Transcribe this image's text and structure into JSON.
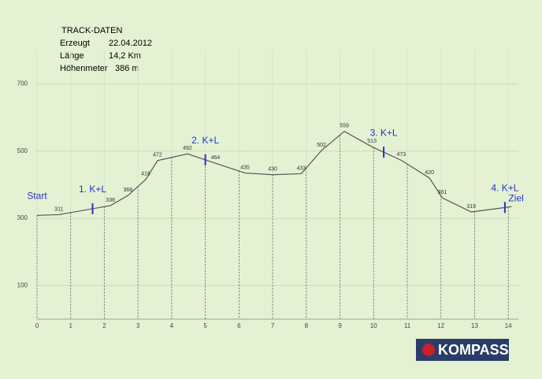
{
  "info": {
    "title": "TRACK-DATEN",
    "rows": [
      [
        "Erzeugt",
        "22.04.2012"
      ],
      [
        "Länge",
        "14,2 Km"
      ],
      [
        "Höhenmeter",
        "386 m"
      ]
    ]
  },
  "logo": "KOMPASS",
  "chart_data": {
    "type": "line",
    "x": [
      0,
      0.65,
      2.18,
      2.7,
      3.23,
      3.58,
      4.47,
      5.3,
      6.18,
      7.0,
      7.85,
      8.45,
      9.13,
      9.95,
      10.82,
      11.66,
      12.04,
      12.9,
      14.1
    ],
    "series": [
      {
        "color": "#555555",
        "values": [
          309,
          311,
          338,
          368,
          416,
          472,
          492,
          464,
          435,
          430,
          433,
          502,
          559,
          513,
          473,
          420,
          361,
          319,
          335
        ],
        "value_labels": [
          null,
          "311",
          "338",
          "368",
          "416",
          "472",
          "492",
          "464",
          "435",
          "430",
          "433",
          "502",
          "559",
          "513",
          "473",
          "420",
          "361",
          "319",
          null
        ]
      }
    ],
    "xlim": [
      0,
      14.3
    ],
    "xticks": [
      0,
      1,
      2,
      3,
      4,
      5,
      6,
      7,
      8,
      9,
      10,
      11,
      12,
      13,
      14
    ],
    "ylim": [
      0,
      800
    ],
    "yticks": [
      100,
      300,
      500,
      700
    ],
    "grid": true,
    "annotations": [
      {
        "text": "Start",
        "x": 0,
        "marker": false
      },
      {
        "text": "1. K+L",
        "x": 1.65,
        "marker": true
      },
      {
        "text": "2. K+L",
        "x": 5.0,
        "marker": true
      },
      {
        "text": "3. K+L",
        "x": 10.3,
        "marker": true
      },
      {
        "text": "4. K+L",
        "x": 13.9,
        "marker": true
      },
      {
        "text": "Ziel",
        "x": 14.1,
        "marker": false
      }
    ]
  }
}
